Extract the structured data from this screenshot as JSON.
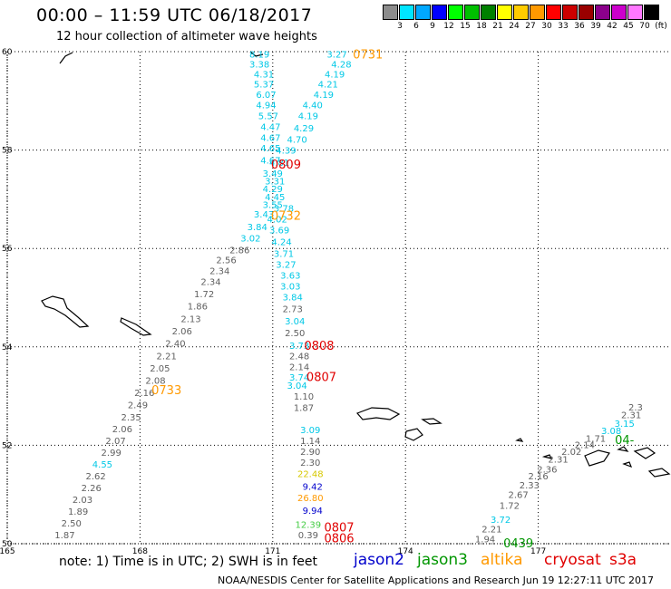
{
  "header": {
    "title": "00:00 – 11:59 UTC 06/18/2017",
    "subtitle": "12 hour collection of altimeter wave heights"
  },
  "colorbar": {
    "colors": [
      "#8c8c8c",
      "#00e5ff",
      "#00a8ff",
      "#0000ff",
      "#00ff00",
      "#00c000",
      "#008000",
      "#ffff00",
      "#ffcc00",
      "#ff9900",
      "#ff0000",
      "#cc0000",
      "#990000",
      "#8b008b",
      "#cc00cc",
      "#ff77ff",
      "#000000"
    ],
    "labels": [
      "3",
      "6",
      "9",
      "12",
      "15",
      "18",
      "21",
      "24",
      "27",
      "30",
      "33",
      "36",
      "39",
      "42",
      "45",
      "70",
      "(ft)"
    ]
  },
  "map": {
    "lat_ticks": [
      "60",
      "58",
      "56",
      "54",
      "52",
      "50"
    ],
    "lon_ticks": [
      "165",
      "168",
      "171",
      "174",
      "177"
    ],
    "colors": {
      "gray": "#606060",
      "cyan": "#00c8e6",
      "red": "#e00000",
      "orange": "#ff9900",
      "blue": "#0000cc",
      "green": "#009600",
      "yellow": "#d6c800",
      "lightgreen": "#44cc44"
    },
    "labels": [
      {
        "t": "8.19",
        "lon": 170.7,
        "lat": 59.95,
        "c": "cyan"
      },
      {
        "t": "3.38",
        "lon": 170.7,
        "lat": 59.75,
        "c": "cyan"
      },
      {
        "t": "4.31",
        "lon": 170.8,
        "lat": 59.55,
        "c": "cyan"
      },
      {
        "t": "5.37",
        "lon": 170.8,
        "lat": 59.35,
        "c": "cyan"
      },
      {
        "t": "6.07",
        "lon": 170.85,
        "lat": 59.13,
        "c": "cyan"
      },
      {
        "t": "4.94",
        "lon": 170.85,
        "lat": 58.92,
        "c": "cyan"
      },
      {
        "t": "5.57",
        "lon": 170.9,
        "lat": 58.7,
        "c": "cyan"
      },
      {
        "t": "4.47",
        "lon": 170.95,
        "lat": 58.48,
        "c": "cyan"
      },
      {
        "t": "4.67",
        "lon": 170.95,
        "lat": 58.26,
        "c": "cyan"
      },
      {
        "t": "4.65",
        "lon": 170.95,
        "lat": 58.05,
        "c": "cyan"
      },
      {
        "t": "4.67",
        "lon": 170.95,
        "lat": 57.8,
        "c": "cyan"
      },
      {
        "t": "3.49",
        "lon": 171.0,
        "lat": 57.53,
        "c": "cyan"
      },
      {
        "t": "3.31",
        "lon": 171.05,
        "lat": 57.38,
        "c": "cyan"
      },
      {
        "t": "4.29",
        "lon": 171.0,
        "lat": 57.22,
        "c": "cyan"
      },
      {
        "t": "4.45",
        "lon": 171.05,
        "lat": 57.05,
        "c": "cyan"
      },
      {
        "t": "3.55",
        "lon": 171.0,
        "lat": 56.9,
        "c": "cyan"
      },
      {
        "t": "3.43",
        "lon": 170.8,
        "lat": 56.7,
        "c": "cyan"
      },
      {
        "t": "3.84",
        "lon": 170.65,
        "lat": 56.45,
        "c": "cyan"
      },
      {
        "t": "3.02",
        "lon": 170.5,
        "lat": 56.22,
        "c": "cyan"
      },
      {
        "t": "3.27",
        "lon": 172.45,
        "lat": 59.95,
        "c": "cyan"
      },
      {
        "t": "4.28",
        "lon": 172.55,
        "lat": 59.75,
        "c": "cyan"
      },
      {
        "t": "4.19",
        "lon": 172.4,
        "lat": 59.55,
        "c": "cyan"
      },
      {
        "t": "4.21",
        "lon": 172.25,
        "lat": 59.35,
        "c": "cyan"
      },
      {
        "t": "4.19",
        "lon": 172.15,
        "lat": 59.13,
        "c": "cyan"
      },
      {
        "t": "4.40",
        "lon": 171.9,
        "lat": 58.92,
        "c": "cyan"
      },
      {
        "t": "4.19",
        "lon": 171.8,
        "lat": 58.7,
        "c": "cyan"
      },
      {
        "t": "4.29",
        "lon": 171.7,
        "lat": 58.45,
        "c": "cyan"
      },
      {
        "t": "4.70",
        "lon": 171.55,
        "lat": 58.22,
        "c": "cyan"
      },
      {
        "t": "4.39",
        "lon": 171.3,
        "lat": 58.0,
        "c": "cyan"
      },
      {
        "t": "4.81",
        "lon": 171.15,
        "lat": 57.75,
        "c": "cyan"
      },
      {
        "t": "3.78",
        "lon": 171.25,
        "lat": 56.82,
        "c": "cyan"
      },
      {
        "t": "4.02",
        "lon": 171.1,
        "lat": 56.6,
        "c": "cyan"
      },
      {
        "t": "3.69",
        "lon": 171.15,
        "lat": 56.38,
        "c": "cyan"
      },
      {
        "t": "4.24",
        "lon": 171.2,
        "lat": 56.14,
        "c": "cyan"
      },
      {
        "t": "3.71",
        "lon": 171.25,
        "lat": 55.9,
        "c": "cyan"
      },
      {
        "t": "3.27",
        "lon": 171.3,
        "lat": 55.68,
        "c": "cyan"
      },
      {
        "t": "3.63",
        "lon": 171.4,
        "lat": 55.46,
        "c": "cyan"
      },
      {
        "t": "3.03",
        "lon": 171.4,
        "lat": 55.24,
        "c": "cyan"
      },
      {
        "t": "3.84",
        "lon": 171.45,
        "lat": 55.02,
        "c": "cyan"
      },
      {
        "t": "2.73",
        "lon": 171.45,
        "lat": 54.78,
        "c": "gray"
      },
      {
        "t": "3.04",
        "lon": 171.5,
        "lat": 54.53,
        "c": "cyan"
      },
      {
        "t": "2.50",
        "lon": 171.5,
        "lat": 54.29,
        "c": "gray"
      },
      {
        "t": "3.73",
        "lon": 171.6,
        "lat": 54.03,
        "c": "cyan"
      },
      {
        "t": "2.48",
        "lon": 171.6,
        "lat": 53.82,
        "c": "gray"
      },
      {
        "t": "2.14",
        "lon": 171.6,
        "lat": 53.6,
        "c": "gray"
      },
      {
        "t": "3.74",
        "lon": 171.6,
        "lat": 53.39,
        "c": "cyan"
      },
      {
        "t": "3.04",
        "lon": 171.55,
        "lat": 53.22,
        "c": "cyan"
      },
      {
        "t": "1.10",
        "lon": 171.7,
        "lat": 53.0,
        "c": "gray"
      },
      {
        "t": "1.87",
        "lon": 171.7,
        "lat": 52.77,
        "c": "gray"
      },
      {
        "t": "3.09",
        "lon": 171.85,
        "lat": 52.32,
        "c": "cyan"
      },
      {
        "t": "1.14",
        "lon": 171.85,
        "lat": 52.1,
        "c": "gray"
      },
      {
        "t": "2.90",
        "lon": 171.85,
        "lat": 51.88,
        "c": "gray"
      },
      {
        "t": "2.30",
        "lon": 171.85,
        "lat": 51.66,
        "c": "gray"
      },
      {
        "t": "22.48",
        "lon": 171.85,
        "lat": 51.43,
        "c": "yellow"
      },
      {
        "t": "9.42",
        "lon": 171.9,
        "lat": 51.17,
        "c": "blue"
      },
      {
        "t": "26.80",
        "lon": 171.85,
        "lat": 50.94,
        "c": "orange"
      },
      {
        "t": "9.94",
        "lon": 171.9,
        "lat": 50.68,
        "c": "blue"
      },
      {
        "t": "12.39",
        "lon": 171.8,
        "lat": 50.4,
        "c": "lightgreen"
      },
      {
        "t": "0.39",
        "lon": 171.8,
        "lat": 50.18,
        "c": "gray"
      },
      {
        "t": "2.86",
        "lon": 170.25,
        "lat": 55.98,
        "c": "gray"
      },
      {
        "t": "2.56",
        "lon": 169.95,
        "lat": 55.77,
        "c": "gray"
      },
      {
        "t": "2.34",
        "lon": 169.8,
        "lat": 55.55,
        "c": "gray"
      },
      {
        "t": "2.34",
        "lon": 169.6,
        "lat": 55.33,
        "c": "gray"
      },
      {
        "t": "1.72",
        "lon": 169.45,
        "lat": 55.08,
        "c": "gray"
      },
      {
        "t": "1.86",
        "lon": 169.3,
        "lat": 54.83,
        "c": "gray"
      },
      {
        "t": "2.13",
        "lon": 169.15,
        "lat": 54.58,
        "c": "gray"
      },
      {
        "t": "2.06",
        "lon": 168.95,
        "lat": 54.33,
        "c": "gray"
      },
      {
        "t": "2.40",
        "lon": 168.8,
        "lat": 54.08,
        "c": "gray"
      },
      {
        "t": "2.21",
        "lon": 168.6,
        "lat": 53.82,
        "c": "gray"
      },
      {
        "t": "2.05",
        "lon": 168.45,
        "lat": 53.57,
        "c": "gray"
      },
      {
        "t": "2.08",
        "lon": 168.35,
        "lat": 53.32,
        "c": "gray"
      },
      {
        "t": "2.16",
        "lon": 168.1,
        "lat": 53.08,
        "c": "gray"
      },
      {
        "t": "2.49",
        "lon": 167.95,
        "lat": 52.83,
        "c": "gray"
      },
      {
        "t": "2.35",
        "lon": 167.8,
        "lat": 52.58,
        "c": "gray"
      },
      {
        "t": "2.06",
        "lon": 167.6,
        "lat": 52.34,
        "c": "gray"
      },
      {
        "t": "2.07",
        "lon": 167.45,
        "lat": 52.1,
        "c": "gray"
      },
      {
        "t": "2.99",
        "lon": 167.35,
        "lat": 51.86,
        "c": "gray"
      },
      {
        "t": "4.55",
        "lon": 167.15,
        "lat": 51.62,
        "c": "cyan"
      },
      {
        "t": "2.62",
        "lon": 167.0,
        "lat": 51.38,
        "c": "gray"
      },
      {
        "t": "2.26",
        "lon": 166.9,
        "lat": 51.14,
        "c": "gray"
      },
      {
        "t": "2.03",
        "lon": 166.7,
        "lat": 50.9,
        "c": "gray"
      },
      {
        "t": "1.89",
        "lon": 166.6,
        "lat": 50.66,
        "c": "gray"
      },
      {
        "t": "2.50",
        "lon": 166.45,
        "lat": 50.42,
        "c": "gray"
      },
      {
        "t": "1.87",
        "lon": 166.3,
        "lat": 50.18,
        "c": "gray"
      },
      {
        "t": "1.94",
        "lon": 175.8,
        "lat": 50.1,
        "c": "gray"
      },
      {
        "t": "2.21",
        "lon": 175.95,
        "lat": 50.3,
        "c": "gray"
      },
      {
        "t": "3.72",
        "lon": 176.15,
        "lat": 50.5,
        "c": "cyan"
      },
      {
        "t": "1.72",
        "lon": 176.35,
        "lat": 50.78,
        "c": "gray"
      },
      {
        "t": "2.67",
        "lon": 176.55,
        "lat": 51.0,
        "c": "gray"
      },
      {
        "t": "2.33",
        "lon": 176.8,
        "lat": 51.2,
        "c": "gray"
      },
      {
        "t": "2.16",
        "lon": 177.0,
        "lat": 51.38,
        "c": "gray"
      },
      {
        "t": "2.36",
        "lon": 177.2,
        "lat": 51.52,
        "c": "gray"
      },
      {
        "t": "2.31",
        "lon": 177.45,
        "lat": 51.72,
        "c": "gray"
      },
      {
        "t": "2.02",
        "lon": 177.75,
        "lat": 51.88,
        "c": "gray"
      },
      {
        "t": "2.14",
        "lon": 178.05,
        "lat": 52.02,
        "c": "gray"
      },
      {
        "t": "1.71",
        "lon": 178.3,
        "lat": 52.15,
        "c": "gray"
      },
      {
        "t": "3.08",
        "lon": 178.65,
        "lat": 52.3,
        "c": "cyan"
      },
      {
        "t": "3.15",
        "lon": 178.95,
        "lat": 52.45,
        "c": "cyan"
      },
      {
        "t": "2.31",
        "lon": 179.1,
        "lat": 52.62,
        "c": "gray"
      },
      {
        "t": "2.3",
        "lon": 179.2,
        "lat": 52.78,
        "c": "gray"
      }
    ],
    "times": [
      {
        "t": "0731",
        "lon": 173.15,
        "lat": 59.95,
        "c": "orange"
      },
      {
        "t": "0809",
        "lon": 171.3,
        "lat": 57.72,
        "c": "red"
      },
      {
        "t": "0732",
        "lon": 171.3,
        "lat": 56.68,
        "c": "orange"
      },
      {
        "t": "0808",
        "lon": 172.05,
        "lat": 54.03,
        "c": "red"
      },
      {
        "t": "0807",
        "lon": 172.1,
        "lat": 53.4,
        "c": "red"
      },
      {
        "t": "0733",
        "lon": 168.6,
        "lat": 53.13,
        "c": "orange"
      },
      {
        "t": "0807",
        "lon": 172.5,
        "lat": 50.34,
        "c": "red"
      },
      {
        "t": "0806",
        "lon": 172.5,
        "lat": 50.12,
        "c": "red"
      },
      {
        "t": "0439",
        "lon": 176.55,
        "lat": 50.02,
        "c": "green"
      },
      {
        "t": "04-",
        "lon": 178.95,
        "lat": 52.12,
        "c": "green"
      }
    ]
  },
  "footer": {
    "note": "note: 1) Time is in UTC; 2) SWH is in feet",
    "sensors": [
      {
        "name": "jason2",
        "color": "#0000cc"
      },
      {
        "name": "jason3",
        "color": "#009600"
      },
      {
        "name": "altika",
        "color": "#ff9900"
      },
      {
        "name": "cryosat",
        "color": "#e00000"
      },
      {
        "name": "s3a",
        "color": "#e00000"
      }
    ],
    "credit": "NOAA/NESDIS Center for Satellite Applications and Research   Jun 19 12:27:11 UTC 2017"
  }
}
